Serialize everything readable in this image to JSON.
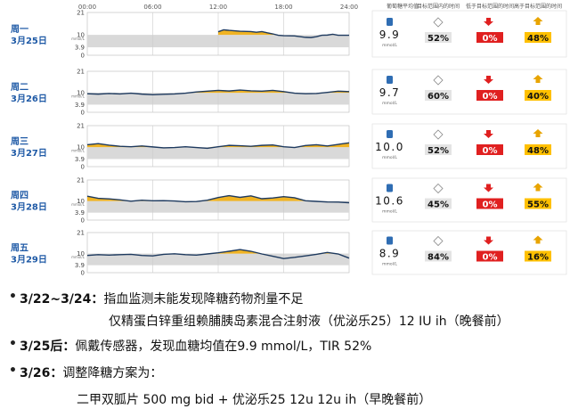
{
  "header": {
    "times": [
      "00:00",
      "06:00",
      "12:00",
      "18:00",
      "24:00"
    ],
    "stat_headers": [
      "葡萄糖平均值",
      "目标范围内的时间",
      "低于目标范围的时间",
      "高于目标范围的时间"
    ]
  },
  "chart_data": [
    {
      "type": "line",
      "day": "周一",
      "date": "3月25日",
      "ylim": [
        0,
        21
      ],
      "target_range": [
        3.9,
        10
      ],
      "y_ticks": [
        "21",
        "10",
        "3.9",
        "0"
      ],
      "y_unit": "mmol/L",
      "x": [
        12,
        12.5,
        13,
        14,
        15,
        15.5,
        16,
        16.5,
        17,
        17.5,
        18,
        19,
        20,
        20.5,
        21,
        21.5,
        22,
        22.5,
        23,
        23.5,
        24
      ],
      "values": [
        11.5,
        12.5,
        12.2,
        11.8,
        11.6,
        11.3,
        11.6,
        11,
        10.5,
        9.8,
        9.6,
        9.5,
        8.8,
        8.7,
        9.1,
        9.8,
        9.9,
        10.3,
        9.8,
        9.8,
        9.8
      ],
      "stats": {
        "mean": "9.9",
        "mean_unit": "mmol/L",
        "tir": "52%",
        "tbr": "0%",
        "tar": "48%"
      }
    },
    {
      "type": "line",
      "day": "周二",
      "date": "3月26日",
      "ylim": [
        0,
        21
      ],
      "target_range": [
        3.9,
        10
      ],
      "y_ticks": [
        "21",
        "10",
        "3.9",
        "0"
      ],
      "y_unit": "mmol/L",
      "x": [
        0,
        1,
        2,
        3,
        4,
        5,
        6,
        7,
        8,
        9,
        10,
        11,
        12,
        13,
        14,
        15,
        16,
        17,
        18,
        19,
        20,
        21,
        22,
        23,
        24
      ],
      "values": [
        9.5,
        9.3,
        9.6,
        9.4,
        9.8,
        9.3,
        9.0,
        9.2,
        9.4,
        9.8,
        10.4,
        10.8,
        11.2,
        10.9,
        11.4,
        11.0,
        10.8,
        11.2,
        10.6,
        9.8,
        9.5,
        9.6,
        10.2,
        10.8,
        10.6
      ],
      "stats": {
        "mean": "9.7",
        "mean_unit": "mmol/L",
        "tir": "60%",
        "tbr": "0%",
        "tar": "40%"
      }
    },
    {
      "type": "line",
      "day": "周三",
      "date": "3月27日",
      "ylim": [
        0,
        21
      ],
      "target_range": [
        3.9,
        10
      ],
      "y_ticks": [
        "21",
        "10",
        "3.9",
        "0"
      ],
      "y_unit": "mmol/L",
      "x": [
        0,
        1,
        2,
        3,
        4,
        5,
        6,
        7,
        8,
        9,
        10,
        11,
        12,
        13,
        14,
        15,
        16,
        17,
        18,
        19,
        20,
        21,
        22,
        23,
        24
      ],
      "values": [
        11.2,
        11.8,
        11.0,
        10.4,
        10.2,
        10.6,
        10.1,
        9.6,
        9.8,
        10.2,
        9.8,
        9.4,
        10.2,
        10.9,
        10.7,
        10.4,
        10.9,
        11.1,
        10.2,
        9.8,
        10.8,
        11.2,
        10.6,
        11.4,
        12.2
      ],
      "stats": {
        "mean": "10.0",
        "mean_unit": "mmol/L",
        "tir": "52%",
        "tbr": "0%",
        "tar": "48%"
      }
    },
    {
      "type": "line",
      "day": "周四",
      "date": "3月28日",
      "ylim": [
        0,
        21
      ],
      "target_range": [
        3.9,
        10
      ],
      "y_ticks": [
        "21",
        "10",
        "3.9",
        "0"
      ],
      "y_unit": "mmol/L",
      "x": [
        0,
        1,
        2,
        3,
        4,
        5,
        6,
        7,
        8,
        9,
        10,
        11,
        12,
        13,
        14,
        15,
        16,
        17,
        18,
        19,
        20,
        21,
        22,
        23,
        24
      ],
      "values": [
        12.5,
        11.4,
        11.1,
        10.6,
        9.9,
        10.4,
        10.1,
        10.2,
        10.0,
        9.6,
        9.7,
        10.4,
        11.8,
        12.8,
        11.9,
        12.7,
        11.2,
        11.6,
        12.3,
        11.7,
        10.1,
        9.8,
        9.5,
        9.4,
        9.1
      ],
      "stats": {
        "mean": "10.6",
        "mean_unit": "mmol/L",
        "tir": "45%",
        "tbr": "0%",
        "tar": "55%"
      }
    },
    {
      "type": "line",
      "day": "周五",
      "date": "3月29日",
      "ylim": [
        0,
        21
      ],
      "target_range": [
        3.9,
        10
      ],
      "y_ticks": [
        "21",
        "10",
        "3.9",
        "0"
      ],
      "y_unit": "mmol/L",
      "x": [
        0,
        1,
        2,
        3,
        4,
        5,
        6,
        7,
        8,
        9,
        10,
        11,
        12,
        13,
        14,
        15,
        16,
        17,
        18,
        19,
        20,
        21,
        22,
        23,
        24
      ],
      "values": [
        9.0,
        9.4,
        9.2,
        9.4,
        9.6,
        9.0,
        8.8,
        9.6,
        9.9,
        9.4,
        9.2,
        9.8,
        10.4,
        11.2,
        12.1,
        11.2,
        9.8,
        8.6,
        7.4,
        8.0,
        8.8,
        9.6,
        10.6,
        9.8,
        7.6
      ],
      "stats": {
        "mean": "8.9",
        "mean_unit": "mmol/L",
        "tir": "84%",
        "tbr": "0%",
        "tar": "16%"
      }
    }
  ],
  "notes": [
    {
      "head": "3/22~3/24：",
      "text": "指血监测未能发现降糖药物剂量不足"
    },
    {
      "head": "",
      "text": "仅精蛋白锌重组赖脯胰岛素混合注射液（优泌乐25）12 IU ih（晚餐前）"
    },
    {
      "head": "3/25后：",
      "text": "佩戴传感器，发现血糖均值在9.9 mmol/L，TIR 52%"
    },
    {
      "head": "3/26：",
      "text": "调整降糖方案为："
    },
    {
      "head": "",
      "text": "二甲双胍片 500 mg bid + 优泌乐25 12u 12u ih（早晚餐前）"
    }
  ],
  "colors": {
    "line": "#1e3a5f",
    "above": "#f0b323",
    "target_band": "#d9d9d9",
    "day_label": "#1f5aa6",
    "low_badge": "#e02020",
    "high_badge": "#ffc000"
  }
}
